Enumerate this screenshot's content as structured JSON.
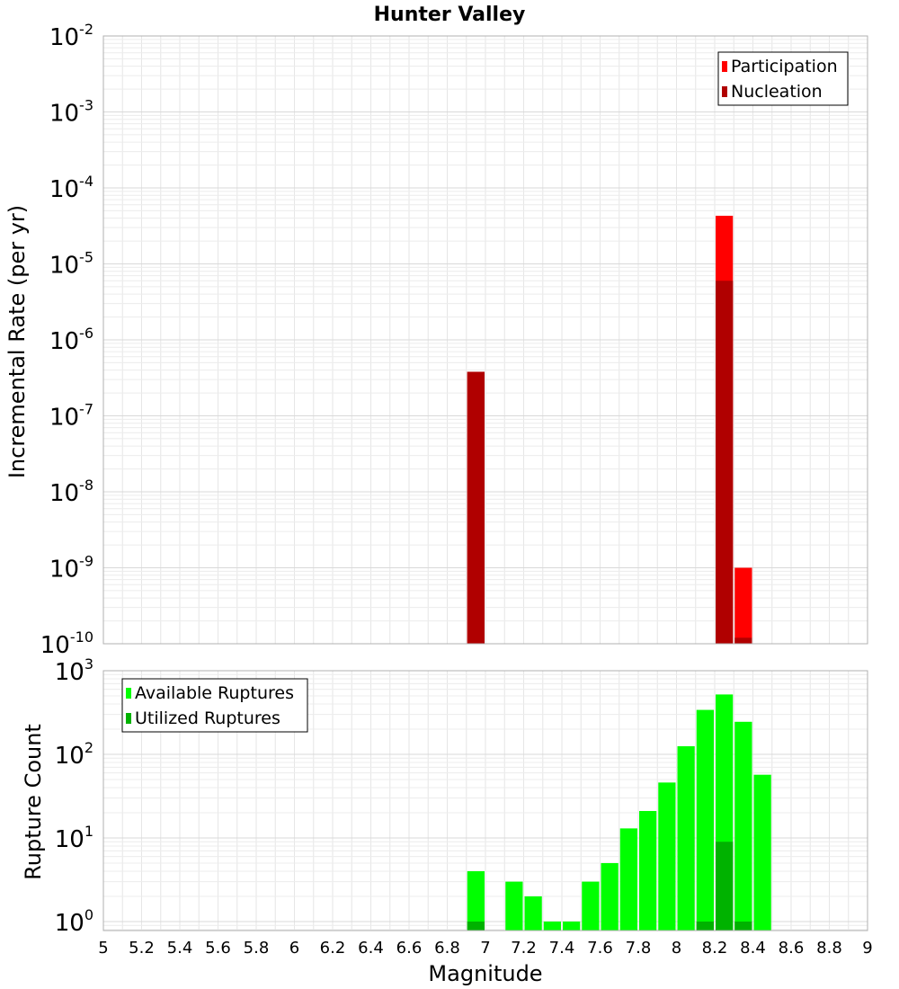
{
  "chart_data": [
    {
      "type": "bar",
      "title": "Hunter Valley",
      "xlabel": "",
      "ylabel": "Incremental Rate (per yr)",
      "xlim": [
        5,
        9
      ],
      "ylim": [
        1e-10,
        0.01
      ],
      "y_scale": "log",
      "grid": true,
      "legend_position": "top-right",
      "y_ticks": [
        {
          "base": "10",
          "exp": "-10",
          "value": 1e-10
        },
        {
          "base": "10",
          "exp": "-9",
          "value": 1e-09
        },
        {
          "base": "10",
          "exp": "-8",
          "value": 1e-08
        },
        {
          "base": "10",
          "exp": "-7",
          "value": 1e-07
        },
        {
          "base": "10",
          "exp": "-6",
          "value": 1e-06
        },
        {
          "base": "10",
          "exp": "-5",
          "value": 1e-05
        },
        {
          "base": "10",
          "exp": "-4",
          "value": 0.0001
        },
        {
          "base": "10",
          "exp": "-3",
          "value": 0.001
        },
        {
          "base": "10",
          "exp": "-2",
          "value": 0.01
        }
      ],
      "series": [
        {
          "name": "Participation",
          "color": "#ff0000",
          "x": [
            6.95,
            8.25,
            8.35
          ],
          "values": [
            3.8e-07,
            4.3e-05,
            1e-09
          ]
        },
        {
          "name": "Nucleation",
          "color": "#b00000",
          "x": [
            6.95,
            8.25,
            8.35
          ],
          "values": [
            3.8e-07,
            6e-06,
            1.2e-10
          ]
        }
      ]
    },
    {
      "type": "bar",
      "title": "",
      "xlabel": "Magnitude",
      "ylabel": "Rupture Count",
      "xlim": [
        5,
        9
      ],
      "ylim": [
        0.78,
        1000
      ],
      "y_scale": "log",
      "grid": true,
      "legend_position": "top-left",
      "x_ticks": [
        "5",
        "5.2",
        "5.4",
        "5.6",
        "5.8",
        "6",
        "6.2",
        "6.4",
        "6.6",
        "6.8",
        "7",
        "7.2",
        "7.4",
        "7.6",
        "7.8",
        "8",
        "8.2",
        "8.4",
        "8.6",
        "8.8",
        "9"
      ],
      "y_ticks": [
        {
          "base": "10",
          "exp": "0",
          "value": 1
        },
        {
          "base": "10",
          "exp": "1",
          "value": 10
        },
        {
          "base": "10",
          "exp": "2",
          "value": 100
        },
        {
          "base": "10",
          "exp": "3",
          "value": 1000
        }
      ],
      "series": [
        {
          "name": "Available Ruptures",
          "color": "#00ff00",
          "x": [
            6.95,
            7.15,
            7.25,
            7.35,
            7.45,
            7.55,
            7.65,
            7.75,
            7.85,
            7.95,
            8.05,
            8.15,
            8.25,
            8.35,
            8.45
          ],
          "values": [
            4,
            3,
            2,
            1,
            1,
            3,
            5,
            13,
            21,
            46,
            125,
            340,
            520,
            245,
            57
          ]
        },
        {
          "name": "Utilized Ruptures",
          "color": "#00b200",
          "x": [
            6.95,
            8.15,
            8.25,
            8.35
          ],
          "values": [
            1,
            1,
            9,
            1
          ]
        }
      ]
    }
  ]
}
